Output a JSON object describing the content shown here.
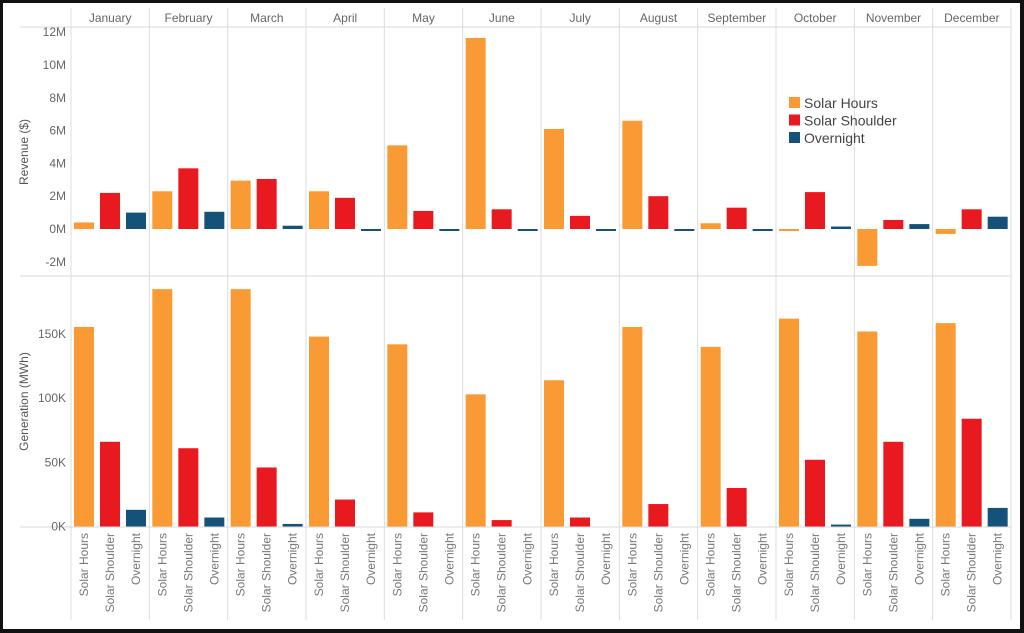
{
  "chart_data": [
    {
      "type": "bar",
      "title": "",
      "ylabel": "Revenue ($)",
      "ylim": [
        -2.5,
        12.2
      ],
      "yticks": [
        -2,
        0,
        2,
        4,
        6,
        8,
        10,
        12
      ],
      "ytick_labels": [
        "-2M",
        "0M",
        "2M",
        "4M",
        "6M",
        "8M",
        "10M",
        "12M"
      ],
      "unit": "millions",
      "categories": [
        "January",
        "February",
        "March",
        "April",
        "May",
        "June",
        "July",
        "August",
        "September",
        "October",
        "November",
        "December"
      ],
      "series": [
        {
          "name": "Solar Hours",
          "values": [
            0.4,
            2.3,
            2.95,
            2.3,
            5.1,
            11.65,
            6.1,
            6.6,
            0.35,
            -0.05,
            -2.25,
            -0.3
          ]
        },
        {
          "name": "Solar Shoulder",
          "values": [
            2.2,
            3.7,
            3.05,
            1.9,
            1.1,
            1.2,
            0.8,
            2.0,
            1.3,
            2.25,
            0.55,
            1.2
          ]
        },
        {
          "name": "Overnight",
          "values": [
            1.0,
            1.05,
            0.2,
            -0.05,
            -0.05,
            -0.05,
            -0.05,
            -0.05,
            -0.05,
            0.15,
            0.3,
            0.75
          ]
        }
      ],
      "grid": true
    },
    {
      "type": "bar",
      "title": "",
      "ylabel": "Generation (MWh)",
      "ylim": [
        0,
        192
      ],
      "yticks": [
        0,
        50,
        100,
        150
      ],
      "ytick_labels": [
        "0K",
        "50K",
        "100K",
        "150K"
      ],
      "unit": "thousands",
      "categories": [
        "January",
        "February",
        "March",
        "April",
        "May",
        "June",
        "July",
        "August",
        "September",
        "October",
        "November",
        "December"
      ],
      "series": [
        {
          "name": "Solar Hours",
          "values": [
            155.5,
            185,
            185,
            148,
            142,
            103,
            114,
            155.5,
            140,
            162,
            152,
            158.5
          ]
        },
        {
          "name": "Solar Shoulder",
          "values": [
            66,
            61,
            46,
            21,
            11,
            5,
            7,
            17.5,
            30,
            52,
            66,
            84
          ]
        },
        {
          "name": "Overnight",
          "values": [
            13,
            7,
            2,
            0,
            0,
            0,
            0,
            0,
            0,
            1.5,
            6,
            14.5
          ]
        }
      ],
      "grid": true
    }
  ],
  "x_category_labels": [
    "Solar Hours",
    "Solar Shoulder",
    "Overnight"
  ],
  "legend": {
    "placement": "top-right",
    "items": [
      {
        "name": "Solar Hours",
        "color": "#fa9a35"
      },
      {
        "name": "Solar Shoulder",
        "color": "#e8191f"
      },
      {
        "name": "Overnight",
        "color": "#15527a"
      }
    ]
  }
}
